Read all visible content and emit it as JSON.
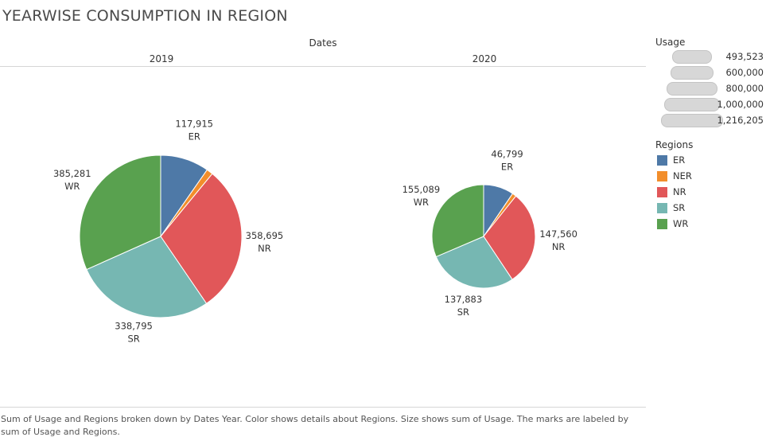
{
  "title": "YEARWISE CONSUMPTION IN REGION",
  "dates_header": "Dates",
  "caption": "Sum of Usage and Regions broken down by Dates Year.  Color shows details about Regions.  Size shows sum of Usage.  The marks are labeled by sum of Usage and Regions.",
  "size_legend": {
    "title": "Usage",
    "items": [
      "493,523",
      "600,000",
      "800,000",
      "1,000,000",
      "1,216,205"
    ],
    "values": [
      493523,
      600000,
      800000,
      1000000,
      1216205
    ]
  },
  "color_legend": {
    "title": "Regions",
    "items": [
      {
        "label": "ER",
        "color": "#4e79a7"
      },
      {
        "label": "NER",
        "color": "#f28e2b"
      },
      {
        "label": "NR",
        "color": "#e15759"
      },
      {
        "label": "SR",
        "color": "#76b7b2"
      },
      {
        "label": "WR",
        "color": "#59a14f"
      }
    ]
  },
  "chart_data": {
    "type": "pie",
    "title": "YEARWISE CONSUMPTION IN REGION",
    "facet_label": "Dates",
    "facets": [
      {
        "name": "2019",
        "total": 1216205,
        "slices": [
          {
            "region": "ER",
            "value": 117915,
            "label": "117,915"
          },
          {
            "region": "NER",
            "value": 15519,
            "label": ""
          },
          {
            "region": "NR",
            "value": 358695,
            "label": "358,695"
          },
          {
            "region": "SR",
            "value": 338795,
            "label": "338,795"
          },
          {
            "region": "WR",
            "value": 385281,
            "label": "385,281"
          }
        ]
      },
      {
        "name": "2020",
        "total": 493523,
        "slices": [
          {
            "region": "ER",
            "value": 46799,
            "label": "46,799"
          },
          {
            "region": "NER",
            "value": 6192,
            "label": ""
          },
          {
            "region": "NR",
            "value": 147560,
            "label": "147,560"
          },
          {
            "region": "SR",
            "value": 137883,
            "label": "137,883"
          },
          {
            "region": "WR",
            "value": 155089,
            "label": "155,089"
          }
        ]
      }
    ],
    "colors": {
      "ER": "#4e79a7",
      "NER": "#f28e2b",
      "NR": "#e15759",
      "SR": "#76b7b2",
      "WR": "#59a14f"
    },
    "size_legend_values": [
      493523,
      600000,
      800000,
      1000000,
      1216205
    ],
    "legend_position": "right"
  }
}
